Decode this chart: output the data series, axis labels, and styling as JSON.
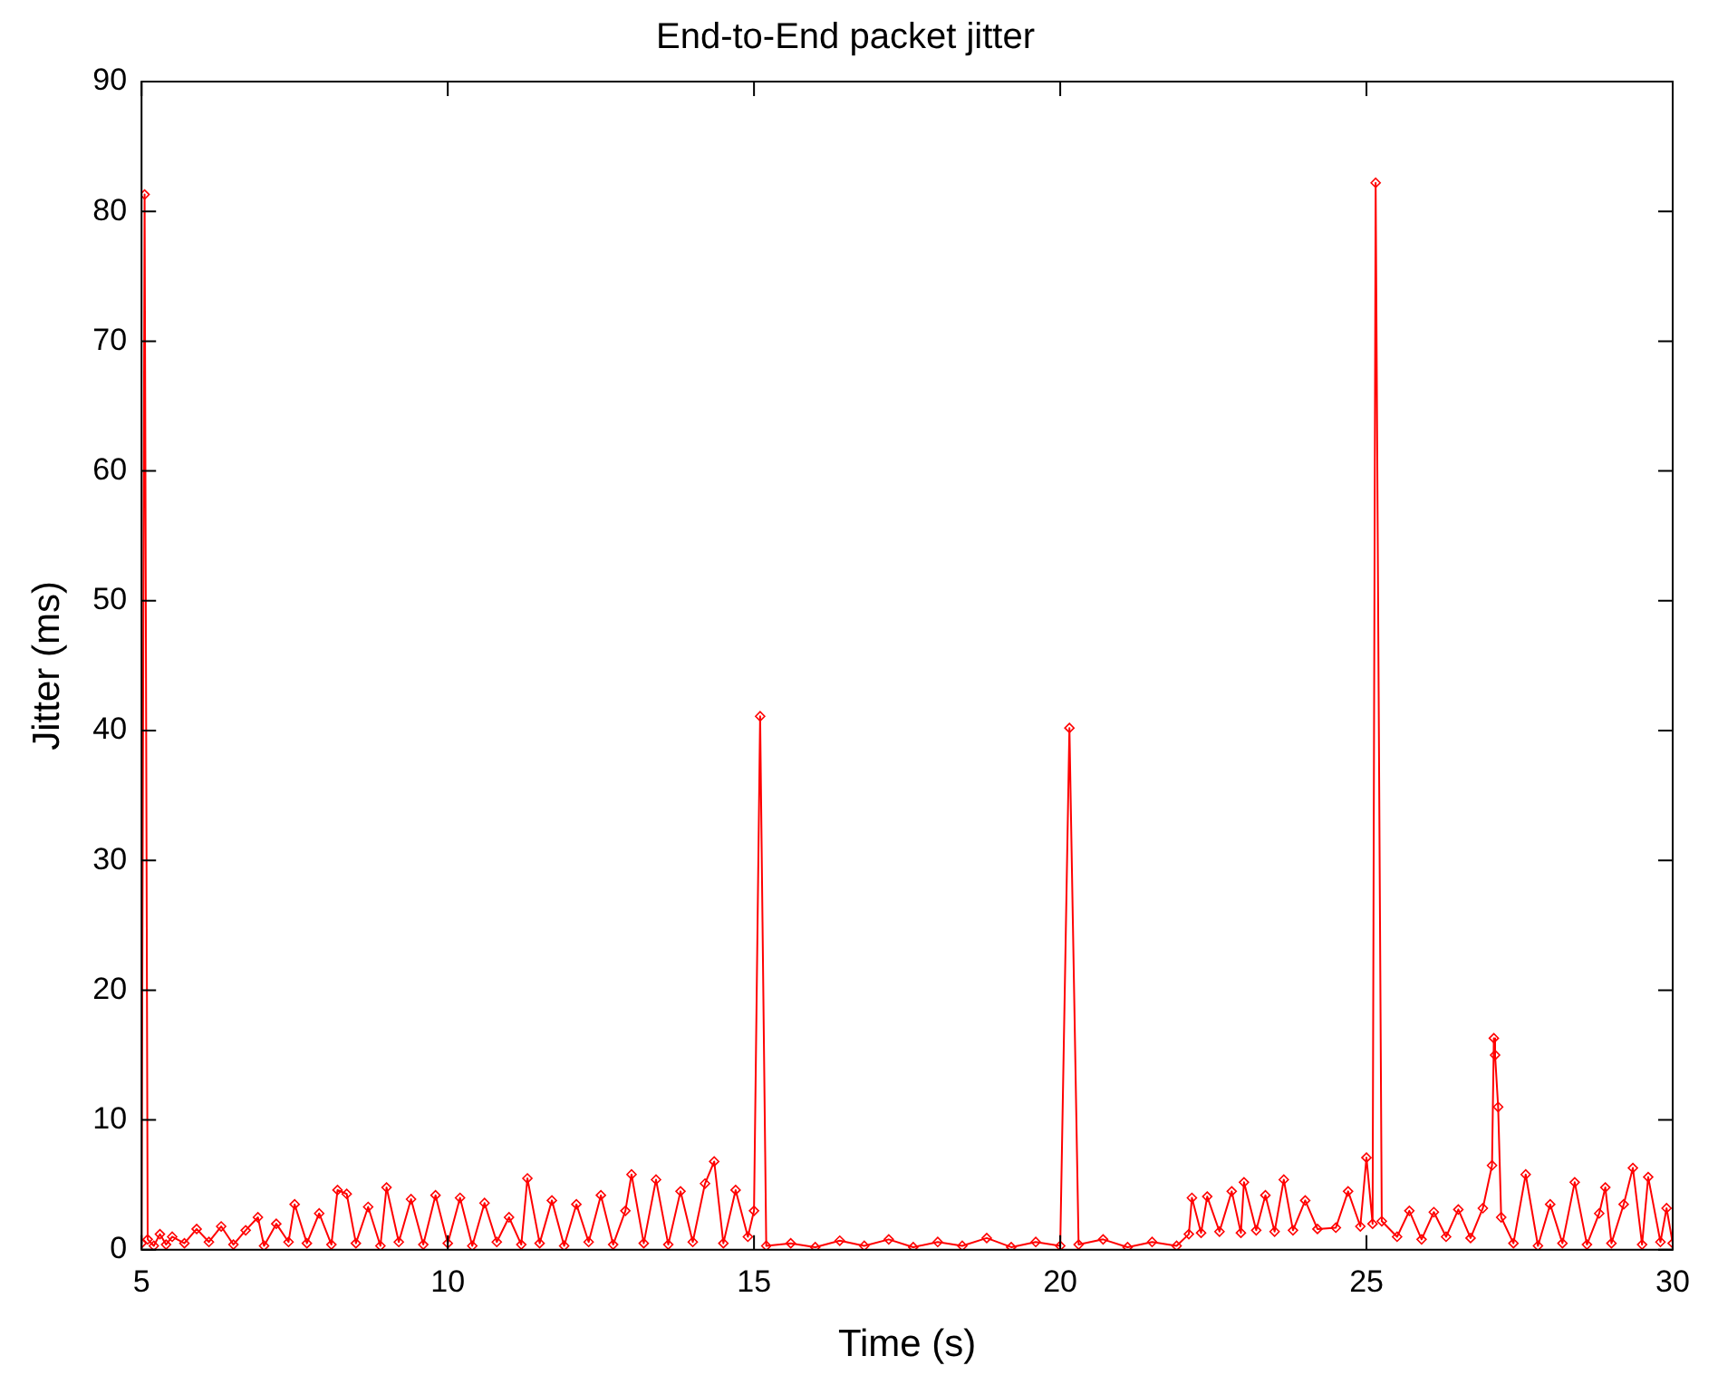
{
  "chart_data": {
    "type": "line",
    "title": "End-to-End packet jitter",
    "xlabel": "Time (s)",
    "ylabel": "Jitter (ms)",
    "color": "#ff0000",
    "marker": "diamond",
    "line_style": "solid",
    "x": [
      5.0,
      5.05,
      5.1,
      5.2,
      5.3,
      5.4,
      5.5,
      5.7,
      5.9,
      6.1,
      6.3,
      6.5,
      6.7,
      6.9,
      7.0,
      7.2,
      7.4,
      7.5,
      7.7,
      7.9,
      8.1,
      8.2,
      8.35,
      8.5,
      8.7,
      8.9,
      9.0,
      9.2,
      9.4,
      9.6,
      9.8,
      10.0,
      10.2,
      10.4,
      10.6,
      10.8,
      11.0,
      11.2,
      11.3,
      11.5,
      11.7,
      11.9,
      12.1,
      12.3,
      12.5,
      12.7,
      12.9,
      13.0,
      13.2,
      13.4,
      13.6,
      13.8,
      14.0,
      14.2,
      14.35,
      14.5,
      14.7,
      14.9,
      15.0,
      15.1,
      15.2,
      15.6,
      16.0,
      16.4,
      16.8,
      17.2,
      17.6,
      18.0,
      18.4,
      18.8,
      19.2,
      19.6,
      20.0,
      20.15,
      20.3,
      20.7,
      21.1,
      21.5,
      21.9,
      22.1,
      22.15,
      22.3,
      22.4,
      22.6,
      22.8,
      22.95,
      23.0,
      23.2,
      23.35,
      23.5,
      23.65,
      23.8,
      24.0,
      24.2,
      24.5,
      24.7,
      24.9,
      25.0,
      25.1,
      25.15,
      25.25,
      25.5,
      25.7,
      25.9,
      26.1,
      26.3,
      26.5,
      26.7,
      26.9,
      27.05,
      27.08,
      27.1,
      27.15,
      27.2,
      27.4,
      27.6,
      27.8,
      28.0,
      28.2,
      28.4,
      28.6,
      28.8,
      28.9,
      29.0,
      29.2,
      29.35,
      29.5,
      29.6,
      29.8,
      29.9,
      30.0
    ],
    "values": [
      0.5,
      81.3,
      0.8,
      0.3,
      1.2,
      0.4,
      1.0,
      0.5,
      1.6,
      0.6,
      1.8,
      0.4,
      1.5,
      2.5,
      0.3,
      2.0,
      0.6,
      3.5,
      0.5,
      2.8,
      0.4,
      4.6,
      4.3,
      0.5,
      3.3,
      0.3,
      4.8,
      0.6,
      3.9,
      0.4,
      4.2,
      0.5,
      4.0,
      0.3,
      3.6,
      0.6,
      2.5,
      0.4,
      5.5,
      0.5,
      3.8,
      0.3,
      3.5,
      0.6,
      4.2,
      0.4,
      3.0,
      5.8,
      0.5,
      5.4,
      0.4,
      4.5,
      0.6,
      5.1,
      6.8,
      0.5,
      4.6,
      1.0,
      3.0,
      41.1,
      0.3,
      0.5,
      0.2,
      0.7,
      0.3,
      0.8,
      0.2,
      0.6,
      0.3,
      0.9,
      0.2,
      0.6,
      0.3,
      40.2,
      0.4,
      0.8,
      0.2,
      0.6,
      0.3,
      1.2,
      4.0,
      1.3,
      4.1,
      1.4,
      4.5,
      1.3,
      5.2,
      1.5,
      4.2,
      1.4,
      5.4,
      1.5,
      3.8,
      1.6,
      1.7,
      4.5,
      1.8,
      7.1,
      2.0,
      82.2,
      2.2,
      1.0,
      3.0,
      0.8,
      2.9,
      1.0,
      3.1,
      0.9,
      3.2,
      6.5,
      16.3,
      15.0,
      11.0,
      2.5,
      0.5,
      5.8,
      0.3,
      3.5,
      0.5,
      5.2,
      0.4,
      2.8,
      4.8,
      0.5,
      3.5,
      6.3,
      0.4,
      5.6,
      0.6,
      3.2,
      0.5
    ],
    "xlim": [
      5,
      30
    ],
    "ylim": [
      0,
      90
    ],
    "xticks": [
      5,
      10,
      15,
      20,
      25,
      30
    ],
    "yticks": [
      0,
      10,
      20,
      30,
      40,
      50,
      60,
      70,
      80,
      90
    ]
  }
}
